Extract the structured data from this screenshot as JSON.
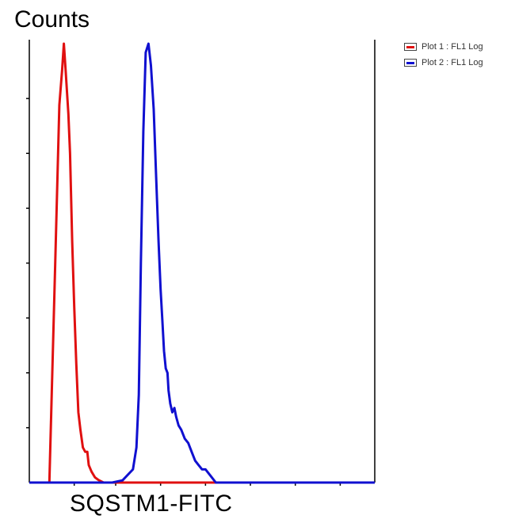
{
  "chart_data": {
    "type": "line",
    "title": "",
    "ylabel": "Counts",
    "xlabel": "SQSTM1-FITC",
    "xlim": [
      0,
      1
    ],
    "ylim": [
      0,
      1
    ],
    "legend_position": "top-right",
    "series": [
      {
        "name": "Plot 1 : FL1 Log",
        "color": "#e01010",
        "x": [
          0,
          0.058,
          0.075,
          0.087,
          0.095,
          0.1,
          0.105,
          0.113,
          0.118,
          0.124,
          0.13,
          0.136,
          0.142,
          0.148,
          0.155,
          0.162,
          0.168,
          0.172,
          0.18,
          0.19,
          0.2,
          0.215,
          0.24,
          0.26,
          1
        ],
        "y": [
          0,
          0,
          0.5,
          0.86,
          0.94,
          1.0,
          0.94,
          0.84,
          0.75,
          0.55,
          0.4,
          0.27,
          0.16,
          0.12,
          0.08,
          0.07,
          0.07,
          0.04,
          0.025,
          0.012,
          0.006,
          0.0,
          0.0,
          0.0,
          0
        ]
      },
      {
        "name": "Plot 2 : FL1 Log",
        "color": "#1010d0",
        "x": [
          0,
          0.24,
          0.27,
          0.3,
          0.31,
          0.317,
          0.323,
          0.33,
          0.337,
          0.345,
          0.352,
          0.36,
          0.367,
          0.374,
          0.38,
          0.385,
          0.39,
          0.395,
          0.4,
          0.403,
          0.408,
          0.414,
          0.42,
          0.425,
          0.432,
          0.44,
          0.45,
          0.46,
          0.47,
          0.48,
          0.49,
          0.5,
          0.51,
          0.525,
          0.54,
          1
        ],
        "y": [
          0,
          0,
          0.005,
          0.03,
          0.08,
          0.2,
          0.5,
          0.8,
          0.98,
          1.0,
          0.95,
          0.85,
          0.7,
          0.55,
          0.44,
          0.37,
          0.3,
          0.26,
          0.25,
          0.21,
          0.18,
          0.16,
          0.17,
          0.15,
          0.13,
          0.12,
          0.1,
          0.09,
          0.07,
          0.05,
          0.04,
          0.03,
          0.03,
          0.015,
          0.0,
          0
        ]
      }
    ],
    "grid": false
  }
}
